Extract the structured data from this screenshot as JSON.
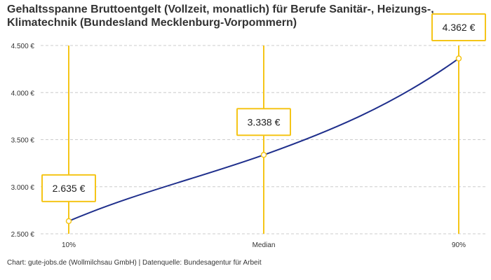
{
  "chart_data": {
    "type": "line",
    "title": "Gehaltsspanne Bruttoentgelt (Vollzeit, monatlich) für Berufe Sanitär-, Heizungs-, Klimatechnik (Bundesland Mecklenburg-Vorpommern)",
    "categories": [
      "10%",
      "Median",
      "90%"
    ],
    "values": [
      2635,
      3338,
      4362
    ],
    "value_labels": [
      "2.635 €",
      "3.338 €",
      "4.362 €"
    ],
    "y_ticks": [
      2500,
      3000,
      3500,
      4000,
      4500
    ],
    "y_tick_labels": [
      "2.500 €",
      "3.000 €",
      "3.500 €",
      "4.000 €",
      "4.500 €"
    ],
    "ylim": [
      2500,
      4500
    ],
    "xlabel": "",
    "ylabel": "",
    "grid": true,
    "colors": {
      "line": "#1f2f8c",
      "marker_line": "#f5c518",
      "marker_fill": "#ffffff",
      "label_border": "#f5c518",
      "grid": "#cccccc"
    }
  },
  "credit": "Chart: gute-jobs.de (Wollmilchsau GmbH) | Datenquelle: Bundesagentur für Arbeit"
}
